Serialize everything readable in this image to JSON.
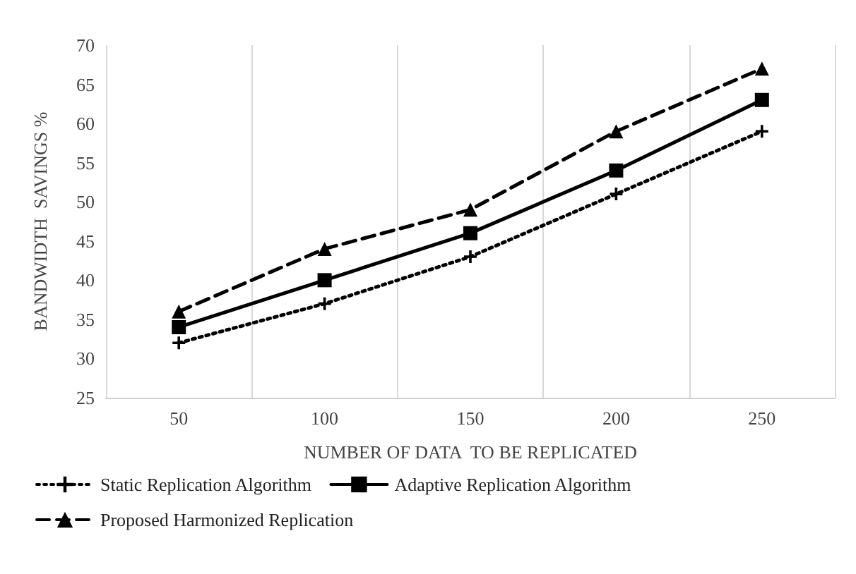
{
  "chart_data": {
    "type": "line",
    "xlabel": "NUMBER OF DATA  TO BE REPLICATED",
    "ylabel": "BANDWIDTH  SAVINGS %",
    "categories": [
      "50",
      "100",
      "150",
      "200",
      "250"
    ],
    "series": [
      {
        "name": "Static Replication Algorithm",
        "color": "#000000",
        "values": [
          32,
          37,
          43,
          51,
          59
        ],
        "marker": "cross",
        "line_style": "dotted"
      },
      {
        "name": "Adaptive Replication Algorithm",
        "color": "#000000",
        "values": [
          34,
          40,
          46,
          54,
          63
        ],
        "marker": "square",
        "line_style": "solid"
      },
      {
        "name": "Proposed Harmonized Replication",
        "color": "#000000",
        "values": [
          36,
          44,
          49,
          59,
          67
        ],
        "marker": "triangle",
        "line_style": "dashed"
      }
    ],
    "ylim": [
      25,
      70
    ],
    "yticks": [
      25,
      30,
      35,
      40,
      45,
      50,
      55,
      60,
      65,
      70
    ],
    "grid": "x",
    "legend": "bottom"
  }
}
